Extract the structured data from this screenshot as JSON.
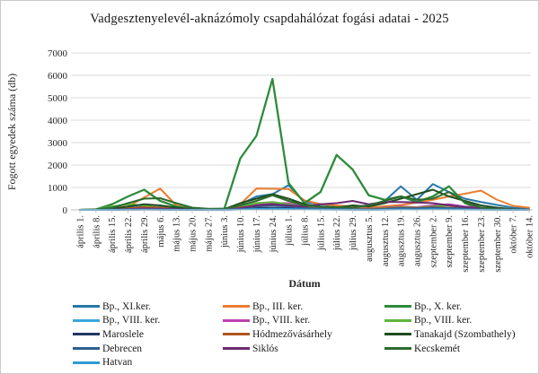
{
  "chart": {
    "title": "Vadgesztenyelevél-aknázómoly csapdahálózat fogási adatai - 2025",
    "x_axis_title": "Dátum",
    "y_axis_title": "Fogott egyedek száma (db)"
  },
  "colors": {
    "gridline": "#d9d9d9",
    "axis_line": "#bfbfbf",
    "tick": "#bfbfbf",
    "text": "#262626",
    "frame_border": "#c9c9c9"
  },
  "chart_data": {
    "type": "line",
    "title": "Vadgesztenyelevél-aknázómoly csapdahálózat fogási adatai - 2025",
    "xlabel": "Dátum",
    "ylabel": "Fogott egyedek száma (db)",
    "ylim": [
      0,
      7000
    ],
    "y_ticks": [
      0,
      1000,
      2000,
      3000,
      4000,
      5000,
      6000,
      7000
    ],
    "grid": true,
    "legend_position": "bottom",
    "categories": [
      "április 1.",
      "április 8.",
      "április 15.",
      "április 22.",
      "április 29.",
      "május 6.",
      "május 13.",
      "május 20.",
      "május 27.",
      "június 3.",
      "június 10.",
      "június 17.",
      "június 24.",
      "július 1.",
      "július 8.",
      "július 15.",
      "július 22.",
      "július 29.",
      "augusztus 5.",
      "augusztus 12.",
      "augusztus 19.",
      "augusztus 26.",
      "szeptember 2.",
      "szeptember 9.",
      "szeptember 16.",
      "szeptember 23.",
      "szeptember 30.",
      "október 7.",
      "október 14."
    ],
    "series": [
      {
        "name": "Bp., XI.ker.",
        "color": "#2878A8",
        "values": [
          0,
          0,
          30,
          80,
          150,
          120,
          80,
          40,
          30,
          50,
          250,
          600,
          700,
          1100,
          350,
          250,
          180,
          150,
          200,
          400,
          1050,
          450,
          1150,
          800,
          500,
          350,
          220,
          100,
          40
        ]
      },
      {
        "name": "Bp., III. ker.",
        "color": "#ED7D31",
        "values": [
          0,
          30,
          100,
          150,
          550,
          950,
          200,
          40,
          20,
          30,
          250,
          950,
          940,
          930,
          420,
          260,
          200,
          150,
          100,
          160,
          220,
          320,
          450,
          600,
          720,
          860,
          450,
          180,
          100
        ]
      },
      {
        "name": "Bp., X. ker.",
        "color": "#2E8B3C",
        "values": [
          0,
          20,
          250,
          600,
          900,
          400,
          150,
          50,
          30,
          50,
          2300,
          3300,
          5840,
          1200,
          300,
          800,
          2450,
          1800,
          650,
          450,
          600,
          350,
          600,
          1050,
          300,
          60,
          20,
          10,
          5
        ]
      },
      {
        "name": "Bp., VIII. ker.",
        "color": "#3BA6DA",
        "values": [
          0,
          0,
          10,
          20,
          30,
          20,
          10,
          5,
          5,
          5,
          20,
          50,
          60,
          50,
          30,
          20,
          15,
          10,
          10,
          20,
          30,
          25,
          40,
          30,
          20,
          15,
          10,
          5,
          5
        ]
      },
      {
        "name": "Bp., VIII. ker.",
        "color": "#BF3FAF",
        "values": [
          0,
          0,
          20,
          50,
          80,
          60,
          30,
          10,
          5,
          10,
          100,
          250,
          300,
          300,
          150,
          100,
          80,
          60,
          50,
          100,
          150,
          120,
          200,
          250,
          150,
          100,
          50,
          20,
          10
        ]
      },
      {
        "name": "Bp., VIII. ker.",
        "color": "#5FB53C",
        "values": [
          0,
          10,
          150,
          250,
          200,
          100,
          50,
          20,
          10,
          20,
          150,
          300,
          350,
          250,
          120,
          80,
          60,
          50,
          40,
          80,
          120,
          100,
          150,
          200,
          120,
          80,
          40,
          15,
          5
        ]
      },
      {
        "name": "Maroslele",
        "color": "#1F3864",
        "values": [
          0,
          0,
          5,
          10,
          15,
          10,
          5,
          5,
          5,
          5,
          30,
          80,
          100,
          80,
          40,
          30,
          20,
          15,
          10,
          20,
          40,
          30,
          50,
          40,
          30,
          20,
          10,
          5,
          5
        ]
      },
      {
        "name": "Hódmezővásárhely",
        "color": "#B1561F",
        "values": [
          0,
          5,
          30,
          80,
          120,
          100,
          50,
          20,
          10,
          20,
          100,
          200,
          250,
          200,
          100,
          80,
          60,
          50,
          40,
          60,
          100,
          80,
          120,
          100,
          80,
          60,
          30,
          10,
          5
        ]
      },
      {
        "name": "Tanakajd (Szombathely)",
        "color": "#1F4E20",
        "values": [
          0,
          0,
          50,
          150,
          250,
          200,
          100,
          30,
          20,
          30,
          300,
          500,
          700,
          500,
          250,
          150,
          100,
          200,
          150,
          300,
          500,
          700,
          900,
          600,
          400,
          200,
          100,
          30,
          10
        ]
      },
      {
        "name": "Debrecen",
        "color": "#2F5E8F",
        "values": [
          0,
          0,
          10,
          30,
          50,
          40,
          20,
          10,
          5,
          10,
          50,
          150,
          200,
          150,
          80,
          60,
          40,
          30,
          20,
          40,
          80,
          60,
          100,
          80,
          60,
          40,
          20,
          10,
          5
        ]
      },
      {
        "name": "Siklós",
        "color": "#6A2A71",
        "values": [
          0,
          0,
          10,
          30,
          60,
          50,
          30,
          10,
          5,
          10,
          80,
          200,
          250,
          200,
          150,
          250,
          300,
          400,
          250,
          350,
          350,
          330,
          300,
          200,
          120,
          80,
          50,
          20,
          10
        ]
      },
      {
        "name": "Kecskemét",
        "color": "#2D6B2D",
        "values": [
          0,
          20,
          100,
          300,
          500,
          520,
          300,
          100,
          50,
          50,
          200,
          400,
          650,
          400,
          200,
          150,
          120,
          100,
          200,
          400,
          600,
          450,
          500,
          800,
          350,
          100,
          40,
          15,
          5
        ]
      },
      {
        "name": "Hatvan",
        "color": "#2F9BD6",
        "values": [
          0,
          0,
          5,
          10,
          15,
          10,
          5,
          5,
          5,
          5,
          20,
          40,
          50,
          40,
          20,
          15,
          10,
          10,
          5,
          10,
          20,
          15,
          30,
          20,
          15,
          10,
          5,
          5,
          5
        ]
      }
    ]
  }
}
